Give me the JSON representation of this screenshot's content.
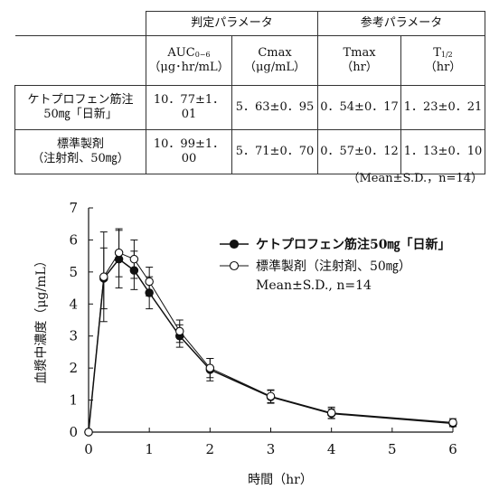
{
  "table": {
    "group_headers": [
      "判定パラメータ",
      "参考パラメータ"
    ],
    "columns": [
      {
        "name": "AUC",
        "sub": "0−6",
        "unit": "（μg･hr/mL）"
      },
      {
        "name": "Cmax",
        "sub": "",
        "unit": "（μg/mL）"
      },
      {
        "name": "Tmax",
        "sub": "",
        "unit": "（hr）"
      },
      {
        "name": "T",
        "sub": "1/2",
        "unit": "（hr）"
      }
    ],
    "rows": [
      {
        "label_line1": "ケトプロフェン筋注",
        "label_line2": "50㎎「日新」",
        "values": [
          "10．77±1．01",
          "5．63±0．95",
          "0．54±0．17",
          "1．23±0．21"
        ]
      },
      {
        "label_line1": "標準製剤",
        "label_line2": "（注射剤、50㎎）",
        "values": [
          "10．99±1．00",
          "5．71±0．70",
          "0．57±0．12",
          "1．13±0．10"
        ]
      }
    ],
    "footnote": "（Mean±S.D.，n=14）"
  },
  "chart_data": {
    "type": "line",
    "xlabel": "時間（hr）",
    "ylabel": "血漿中濃度（μg/mL）",
    "xlim": [
      0,
      6
    ],
    "ylim": [
      0,
      7
    ],
    "xticks": [
      0,
      1,
      2,
      3,
      4,
      5,
      6
    ],
    "yticks": [
      0,
      1,
      2,
      3,
      4,
      5,
      6,
      7
    ],
    "grid": false,
    "legend_position": "top-right",
    "series": [
      {
        "name": "ケトプロフェン筋注50㎎「日新」",
        "marker": "filled-circle",
        "color": "#111111",
        "points": [
          {
            "x": 0,
            "y": 0,
            "sd": 0
          },
          {
            "x": 0.25,
            "y": 4.8,
            "sd": 0.95
          },
          {
            "x": 0.5,
            "y": 5.4,
            "sd": 0.9
          },
          {
            "x": 0.75,
            "y": 5.05,
            "sd": 0.6
          },
          {
            "x": 1,
            "y": 4.35,
            "sd": 0.5
          },
          {
            "x": 1.5,
            "y": 3.0,
            "sd": 0.35
          },
          {
            "x": 2,
            "y": 1.95,
            "sd": 0.35
          },
          {
            "x": 3,
            "y": 1.1,
            "sd": 0.2
          },
          {
            "x": 4,
            "y": 0.58,
            "sd": 0.15
          },
          {
            "x": 6,
            "y": 0.27,
            "sd": 0.1
          }
        ]
      },
      {
        "name": "標準製剤（注射剤、50㎎）",
        "marker": "open-circle",
        "color": "#111111",
        "points": [
          {
            "x": 0,
            "y": 0,
            "sd": 0
          },
          {
            "x": 0.25,
            "y": 4.85,
            "sd": 1.4
          },
          {
            "x": 0.5,
            "y": 5.6,
            "sd": 0.75
          },
          {
            "x": 0.75,
            "y": 5.4,
            "sd": 0.6
          },
          {
            "x": 1,
            "y": 4.7,
            "sd": 0.45
          },
          {
            "x": 1.5,
            "y": 3.15,
            "sd": 0.35
          },
          {
            "x": 2,
            "y": 2.0,
            "sd": 0.3
          },
          {
            "x": 3,
            "y": 1.12,
            "sd": 0.2
          },
          {
            "x": 4,
            "y": 0.6,
            "sd": 0.18
          },
          {
            "x": 6,
            "y": 0.3,
            "sd": 0.12
          }
        ]
      }
    ],
    "legend_note": "Mean±S.D., n=14"
  }
}
